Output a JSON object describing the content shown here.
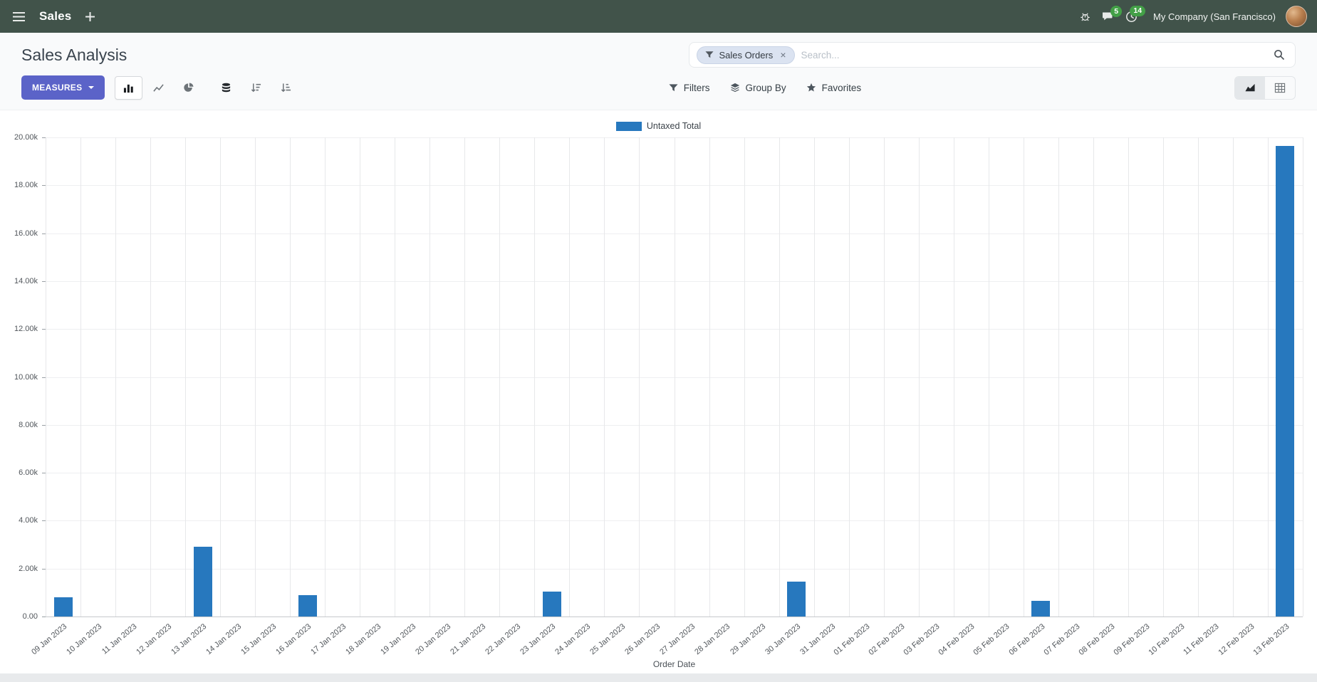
{
  "navbar": {
    "app_name": "Sales",
    "company": "My Company (San Francisco)",
    "messages_badge": "5",
    "activities_badge": "14"
  },
  "control_panel": {
    "title": "Sales Analysis",
    "search": {
      "facet_label": "Sales Orders",
      "facet_remove": "×",
      "placeholder": "Search..."
    },
    "measures_label": "MEASURES",
    "filters_label": "Filters",
    "group_by_label": "Group By",
    "favorites_label": "Favorites"
  },
  "chart_data": {
    "type": "bar",
    "title": "",
    "xlabel": "Order Date",
    "ylabel": "",
    "ylim": [
      0,
      20000
    ],
    "grid": true,
    "legend_position": "top",
    "y_ticks": [
      "20.00k",
      "18.00k",
      "16.00k",
      "14.00k",
      "12.00k",
      "10.00k",
      "8.00k",
      "6.00k",
      "4.00k",
      "2.00k",
      "0.00"
    ],
    "categories": [
      "09 Jan 2023",
      "10 Jan 2023",
      "11 Jan 2023",
      "12 Jan 2023",
      "13 Jan 2023",
      "14 Jan 2023",
      "15 Jan 2023",
      "16 Jan 2023",
      "17 Jan 2023",
      "18 Jan 2023",
      "19 Jan 2023",
      "20 Jan 2023",
      "21 Jan 2023",
      "22 Jan 2023",
      "23 Jan 2023",
      "24 Jan 2023",
      "25 Jan 2023",
      "26 Jan 2023",
      "27 Jan 2023",
      "28 Jan 2023",
      "29 Jan 2023",
      "30 Jan 2023",
      "31 Jan 2023",
      "01 Feb 2023",
      "02 Feb 2023",
      "03 Feb 2023",
      "04 Feb 2023",
      "05 Feb 2023",
      "06 Feb 2023",
      "07 Feb 2023",
      "08 Feb 2023",
      "09 Feb 2023",
      "10 Feb 2023",
      "11 Feb 2023",
      "12 Feb 2023",
      "13 Feb 2023"
    ],
    "series": [
      {
        "name": "Untaxed Total",
        "color": "#2778be",
        "values": [
          800,
          0,
          0,
          0,
          2900,
          0,
          0,
          900,
          0,
          0,
          0,
          0,
          0,
          0,
          1050,
          0,
          0,
          0,
          0,
          0,
          0,
          1450,
          0,
          0,
          0,
          0,
          0,
          0,
          650,
          0,
          0,
          0,
          0,
          0,
          0,
          19650
        ]
      }
    ]
  },
  "colors": {
    "navbar_bg": "#41534a",
    "accent": "#5b63c8",
    "badge_green": "#43a047",
    "bar_blue": "#2778be"
  }
}
